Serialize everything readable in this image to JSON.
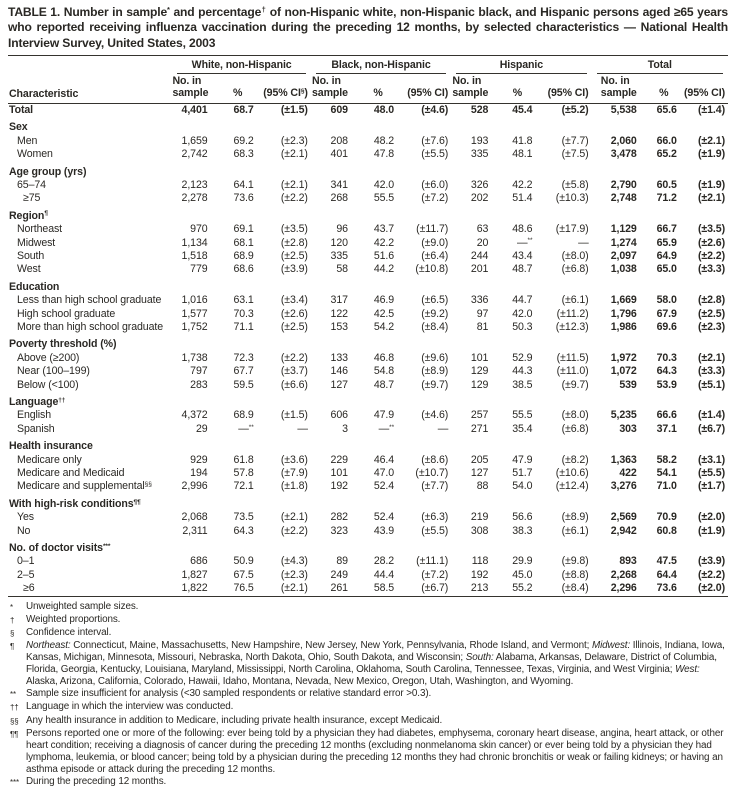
{
  "colors": {
    "text": "#2a2824",
    "rule": "#35332e",
    "bg": "#ffffff"
  },
  "title_segments": [
    {
      "t": "TABLE 1. Number in sample"
    },
    {
      "t": "*",
      "sup": true
    },
    {
      "t": " and percentage"
    },
    {
      "t": "†",
      "sup": true
    },
    {
      "t": " of non-Hispanic white, non-Hispanic black, and Hispanic persons aged ≥65 years who reported receiving influenza vaccination during the preceding 12 months, by selected characteristics — National Health Interview Survey, United States, 2003"
    }
  ],
  "header": {
    "characteristic": "Characteristic",
    "groups": [
      {
        "label": "White, non-Hispanic",
        "cols": [
          [
            {
              "t": "No. in"
            },
            {
              "br": true
            },
            {
              "t": "sample"
            }
          ],
          "%",
          [
            {
              "t": "(95% CI"
            },
            {
              "t": "§",
              "sup": true
            },
            {
              "t": ")"
            }
          ]
        ]
      },
      {
        "label": "Black, non-Hispanic",
        "cols": [
          [
            {
              "t": "No. in"
            },
            {
              "br": true
            },
            {
              "t": "sample"
            }
          ],
          "%",
          "(95% CI)"
        ]
      },
      {
        "label": "Hispanic",
        "cols": [
          [
            {
              "t": "No. in"
            },
            {
              "br": true
            },
            {
              "t": "sample"
            }
          ],
          "%",
          "(95% CI)"
        ]
      },
      {
        "label": "Total",
        "cols": [
          [
            {
              "t": "No. in"
            },
            {
              "br": true
            },
            {
              "t": "sample"
            }
          ],
          "%",
          "(95% CI)"
        ]
      }
    ]
  },
  "rows": [
    {
      "type": "total",
      "label": "Total",
      "values": [
        "4,401",
        "68.7",
        "(±1.5)",
        "609",
        "48.0",
        "(±4.6)",
        "528",
        "45.4",
        "(±5.2)",
        "5,538",
        "65.6",
        "(±1.4)"
      ]
    },
    {
      "type": "section",
      "label": "Sex"
    },
    {
      "type": "data",
      "label": "Men",
      "values": [
        "1,659",
        "69.2",
        "(±2.3)",
        "208",
        "48.2",
        "(±7.6)",
        "193",
        "41.8",
        "(±7.7)",
        "2,060",
        "66.0",
        "(±2.1)"
      ]
    },
    {
      "type": "data",
      "label": "Women",
      "values": [
        "2,742",
        "68.3",
        "(±2.1)",
        "401",
        "47.8",
        "(±5.5)",
        "335",
        "48.1",
        "(±7.5)",
        "3,478",
        "65.2",
        "(±1.9)"
      ]
    },
    {
      "type": "section",
      "label": "Age group (yrs)"
    },
    {
      "type": "data",
      "label": "65–74",
      "values": [
        "2,123",
        "64.1",
        "(±2.1)",
        "341",
        "42.0",
        "(±6.0)",
        "326",
        "42.2",
        "(±5.8)",
        "2,790",
        "60.5",
        "(±1.9)"
      ]
    },
    {
      "type": "data",
      "label": "≥75",
      "indent": 2,
      "values": [
        "2,278",
        "73.6",
        "(±2.2)",
        "268",
        "55.5",
        "(±7.2)",
        "202",
        "51.4",
        "(±10.3)",
        "2,748",
        "71.2",
        "(±2.1)"
      ]
    },
    {
      "type": "section",
      "label": [
        {
          "t": "Region"
        },
        {
          "t": "¶",
          "sup": true
        }
      ]
    },
    {
      "type": "data",
      "label": "Northeast",
      "values": [
        "970",
        "69.1",
        "(±3.5)",
        "96",
        "43.7",
        "(±11.7)",
        "63",
        "48.6",
        "(±17.9)",
        "1,129",
        "66.7",
        "(±3.5)"
      ]
    },
    {
      "type": "data",
      "label": "Midwest",
      "values": [
        "1,134",
        "68.1",
        "(±2.8)",
        "120",
        "42.2",
        "(±9.0)",
        "20",
        [
          {
            "t": "—"
          },
          {
            "t": "**",
            "sup": true
          }
        ],
        "—",
        "1,274",
        "65.9",
        "(±2.6)"
      ]
    },
    {
      "type": "data",
      "label": "South",
      "values": [
        "1,518",
        "68.9",
        "(±2.5)",
        "335",
        "51.6",
        "(±6.4)",
        "244",
        "43.4",
        "(±8.0)",
        "2,097",
        "64.9",
        "(±2.2)"
      ]
    },
    {
      "type": "data",
      "label": "West",
      "values": [
        "779",
        "68.6",
        "(±3.9)",
        "58",
        "44.2",
        "(±10.8)",
        "201",
        "48.7",
        "(±6.8)",
        "1,038",
        "65.0",
        "(±3.3)"
      ]
    },
    {
      "type": "section",
      "label": "Education"
    },
    {
      "type": "data",
      "label": "Less than high school graduate",
      "values": [
        "1,016",
        "63.1",
        "(±3.4)",
        "317",
        "46.9",
        "(±6.5)",
        "336",
        "44.7",
        "(±6.1)",
        "1,669",
        "58.0",
        "(±2.8)"
      ]
    },
    {
      "type": "data",
      "label": "High school graduate",
      "values": [
        "1,577",
        "70.3",
        "(±2.6)",
        "122",
        "42.5",
        "(±9.2)",
        "97",
        "42.0",
        "(±11.2)",
        "1,796",
        "67.9",
        "(±2.5)"
      ]
    },
    {
      "type": "data",
      "label": "More than high school graduate",
      "values": [
        "1,752",
        "71.1",
        "(±2.5)",
        "153",
        "54.2",
        "(±8.4)",
        "81",
        "50.3",
        "(±12.3)",
        "1,986",
        "69.6",
        "(±2.3)"
      ]
    },
    {
      "type": "section",
      "label": "Poverty threshold (%)"
    },
    {
      "type": "data",
      "label": "Above (≥200)",
      "values": [
        "1,738",
        "72.3",
        "(±2.2)",
        "133",
        "46.8",
        "(±9.6)",
        "101",
        "52.9",
        "(±11.5)",
        "1,972",
        "70.3",
        "(±2.1)"
      ]
    },
    {
      "type": "data",
      "label": "Near (100–199)",
      "values": [
        "797",
        "67.7",
        "(±3.7)",
        "146",
        "54.8",
        "(±8.9)",
        "129",
        "44.3",
        "(±11.0)",
        "1,072",
        "64.3",
        "(±3.3)"
      ]
    },
    {
      "type": "data",
      "label": "Below (<100)",
      "values": [
        "283",
        "59.5",
        "(±6.6)",
        "127",
        "48.7",
        "(±9.7)",
        "129",
        "38.5",
        "(±9.7)",
        "539",
        "53.9",
        "(±5.1)"
      ]
    },
    {
      "type": "section",
      "label": [
        {
          "t": "Language"
        },
        {
          "t": "††",
          "sup": true
        }
      ]
    },
    {
      "type": "data",
      "label": "English",
      "values": [
        "4,372",
        "68.9",
        "(±1.5)",
        "606",
        "47.9",
        "(±4.6)",
        "257",
        "55.5",
        "(±8.0)",
        "5,235",
        "66.6",
        "(±1.4)"
      ]
    },
    {
      "type": "data",
      "label": "Spanish",
      "values": [
        "29",
        [
          {
            "t": "—"
          },
          {
            "t": "**",
            "sup": true
          }
        ],
        "—",
        "3",
        [
          {
            "t": "—"
          },
          {
            "t": "**",
            "sup": true
          }
        ],
        "—",
        "271",
        "35.4",
        "(±6.8)",
        "303",
        "37.1",
        "(±6.7)"
      ]
    },
    {
      "type": "section",
      "label": "Health insurance"
    },
    {
      "type": "data",
      "label": "Medicare only",
      "values": [
        "929",
        "61.8",
        "(±3.6)",
        "229",
        "46.4",
        "(±8.6)",
        "205",
        "47.9",
        "(±8.2)",
        "1,363",
        "58.2",
        "(±3.1)"
      ]
    },
    {
      "type": "data",
      "label": "Medicare and Medicaid",
      "values": [
        "194",
        "57.8",
        "(±7.9)",
        "101",
        "47.0",
        "(±10.7)",
        "127",
        "51.7",
        "(±10.6)",
        "422",
        "54.1",
        "(±5.5)"
      ]
    },
    {
      "type": "data",
      "label": [
        {
          "t": "Medicare and supplemental"
        },
        {
          "t": "§§",
          "sup": true
        }
      ],
      "values": [
        "2,996",
        "72.1",
        "(±1.8)",
        "192",
        "52.4",
        "(±7.7)",
        "88",
        "54.0",
        "(±12.4)",
        "3,276",
        "71.0",
        "(±1.7)"
      ]
    },
    {
      "type": "section",
      "label": [
        {
          "t": "With high-risk conditions"
        },
        {
          "t": "¶¶",
          "sup": true
        }
      ]
    },
    {
      "type": "data",
      "label": "Yes",
      "values": [
        "2,068",
        "73.5",
        "(±2.1)",
        "282",
        "52.4",
        "(±6.3)",
        "219",
        "56.6",
        "(±8.9)",
        "2,569",
        "70.9",
        "(±2.0)"
      ]
    },
    {
      "type": "data",
      "label": "No",
      "values": [
        "2,311",
        "64.3",
        "(±2.2)",
        "323",
        "43.9",
        "(±5.5)",
        "308",
        "38.3",
        "(±6.1)",
        "2,942",
        "60.8",
        "(±1.9)"
      ]
    },
    {
      "type": "section",
      "label": [
        {
          "t": "No. of doctor visits"
        },
        {
          "t": "***",
          "sup": true
        }
      ]
    },
    {
      "type": "data",
      "label": "0–1",
      "values": [
        "686",
        "50.9",
        "(±4.3)",
        "89",
        "28.2",
        "(±11.1)",
        "118",
        "29.9",
        "(±9.8)",
        "893",
        "47.5",
        "(±3.9)"
      ]
    },
    {
      "type": "data",
      "label": "2–5",
      "values": [
        "1,827",
        "67.5",
        "(±2.3)",
        "249",
        "44.4",
        "(±7.2)",
        "192",
        "45.0",
        "(±8.8)",
        "2,268",
        "64.4",
        "(±2.2)"
      ]
    },
    {
      "type": "data",
      "label": "≥6",
      "indent": 2,
      "values": [
        "1,822",
        "76.5",
        "(±2.1)",
        "261",
        "58.5",
        "(±6.7)",
        "213",
        "55.2",
        "(±8.4)",
        "2,296",
        "73.6",
        "(±2.0)"
      ]
    }
  ],
  "footnotes": [
    {
      "marker": "*",
      "text": "Unweighted sample sizes."
    },
    {
      "marker": "†",
      "text": "Weighted proportions."
    },
    {
      "marker": "§",
      "text": "Confidence interval."
    },
    {
      "marker": "¶",
      "text": [
        {
          "t": "Northeast:",
          "i": true
        },
        {
          "t": " Connecticut, Maine, Massachusetts, New Hampshire, New Jersey, New York, Pennsylvania, Rhode Island, and Vermont; "
        },
        {
          "t": "Midwest:",
          "i": true
        },
        {
          "t": " Illinois, Indiana, Iowa, Kansas, Michigan, Minnesota, Missouri, Nebraska, North Dakota, Ohio, South Dakota, and Wisconsin; "
        },
        {
          "t": "South:",
          "i": true
        },
        {
          "t": " Alabama, Arkansas, Delaware, District of Columbia, Florida, Georgia, Kentucky, Louisiana, Maryland, Mississippi, North Carolina, Oklahoma, South Carolina, Tennessee, Texas, Virginia, and West Virginia; "
        },
        {
          "t": "West:",
          "i": true
        },
        {
          "t": " Alaska, Arizona, California, Colorado, Hawaii, Idaho, Montana, Nevada, New Mexico, Oregon, Utah, Washington, and Wyoming."
        }
      ]
    },
    {
      "marker": "**",
      "text": "Sample size insufficient for analysis (<30 sampled respondents or relative standard error >0.3)."
    },
    {
      "marker": "††",
      "text": "Language in which the interview was conducted."
    },
    {
      "marker": "§§",
      "text": "Any health insurance in addition to Medicare, including private health insurance, except Medicaid."
    },
    {
      "marker": "¶¶",
      "text": "Persons reported one or more of the following: ever being told by a physician they had diabetes, emphysema, coronary heart disease, angina, heart attack, or other heart condition; receiving a diagnosis of cancer during the preceding 12 months (excluding nonmelanoma skin cancer) or ever being told by a physician they had lymphoma, leukemia, or blood cancer; being told by a physician during the preceding 12 months they had chronic bronchitis or weak or failing kidneys; or having an asthma episode or attack during the preceding 12 months."
    },
    {
      "marker": "***",
      "text": "During the preceding 12 months."
    }
  ]
}
